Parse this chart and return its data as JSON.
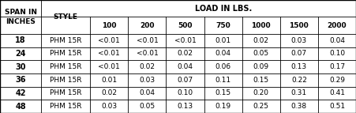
{
  "title": "LOAD IN LBS.",
  "col0_header": "SPAN IN\nINCHES",
  "col1_header": "STYLE",
  "load_cols": [
    "100",
    "200",
    "500",
    "750",
    "1000",
    "1500",
    "2000"
  ],
  "rows": [
    [
      "18",
      "PHM 15R",
      "<0.01",
      "<0.01",
      "<0.01",
      "0.01",
      "0.02",
      "0.03",
      "0.04"
    ],
    [
      "24",
      "PHM 15R",
      "<0.01",
      "<0.01",
      "0.02",
      "0.04",
      "0.05",
      "0.07",
      "0.10"
    ],
    [
      "30",
      "PHM 15R",
      "<0.01",
      "0.02",
      "0.04",
      "0.06",
      "0.09",
      "0.13",
      "0.17"
    ],
    [
      "36",
      "PHM 15R",
      "0.01",
      "0.03",
      "0.07",
      "0.11",
      "0.15",
      "0.22",
      "0.29"
    ],
    [
      "42",
      "PHM 15R",
      "0.02",
      "0.04",
      "0.10",
      "0.15",
      "0.20",
      "0.31",
      "0.41"
    ],
    [
      "48",
      "PHM 15R",
      "0.03",
      "0.05",
      "0.13",
      "0.19",
      "0.25",
      "0.38",
      "0.51"
    ]
  ],
  "col_widths_pts": [
    52,
    62,
    48,
    48,
    48,
    48,
    48,
    48,
    48
  ],
  "bg_color": "#ffffff",
  "border_color": "#000000",
  "text_color": "#000000",
  "header_fontsize": 6.5,
  "data_fontsize": 6.5,
  "span_fontsize": 6.5
}
